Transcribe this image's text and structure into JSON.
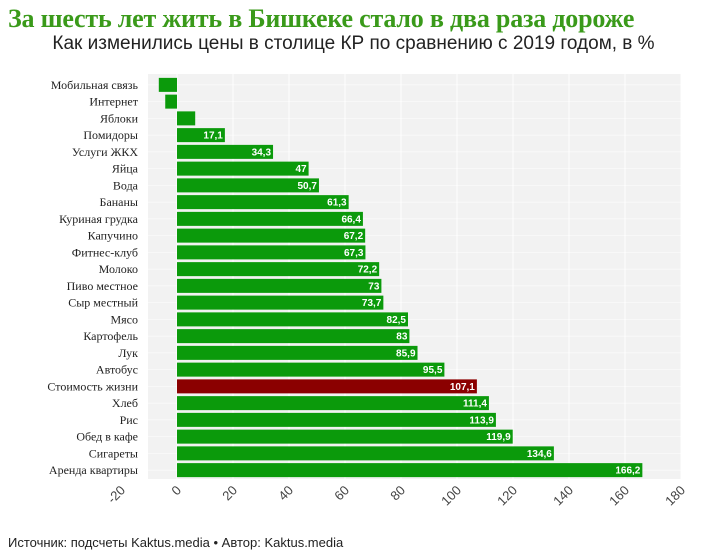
{
  "title": "За шесть лет жить в Бишкеке стало в два раза дороже",
  "subtitle": "Как изменились цены в столице КР по сравнению с 2019 годом, в %",
  "footer": "Источник: подсчеты Kaktus.media • Автор: Kaktus.media",
  "colors": {
    "bar": "#0b9a0b",
    "highlight": "#8b0000",
    "plot_bg": "#f2f2f2",
    "grid": "#ffffff",
    "title": "#3a9a1a"
  },
  "chart_data": {
    "type": "bar",
    "orientation": "horizontal",
    "title": "За шесть лет жить в Бишкеке стало в два раза дороже",
    "subtitle": "Как изменились цены в столице КР по сравнению с 2019 годом, в %",
    "xlabel": "",
    "ylabel": "",
    "xlim": [
      -20,
      180
    ],
    "xticks": [
      -20,
      0,
      20,
      40,
      60,
      80,
      100,
      120,
      140,
      160,
      180
    ],
    "highlight": "Стоимость жизни",
    "categories": [
      "Мобильная связь",
      "Интернет",
      "Яблоки",
      "Помидоры",
      "Услуги ЖКХ",
      "Яйца",
      "Вода",
      "Бананы",
      "Куриная грудка",
      "Капучино",
      "Фитнес-клуб",
      "Молоко",
      "Пиво местное",
      "Сыр местный",
      "Мясо",
      "Картофель",
      "Лук",
      "Автобус",
      "Стоимость жизни",
      "Хлеб",
      "Рис",
      "Обед в кафе",
      "Сигареты",
      "Аренда квартиры"
    ],
    "values": [
      -6.5,
      -4.2,
      6.5,
      17.1,
      34.3,
      47,
      50.7,
      61.3,
      66.4,
      67.2,
      67.3,
      72.2,
      73,
      73.7,
      82.5,
      83,
      85.9,
      95.5,
      107.1,
      111.4,
      113.9,
      119.9,
      134.6,
      166.2
    ],
    "labels": [
      "",
      "",
      "",
      "17,1",
      "34,3",
      "47",
      "50,7",
      "61,3",
      "66,4",
      "67,2",
      "67,3",
      "72,2",
      "73",
      "73,7",
      "82,5",
      "83",
      "85,9",
      "95,5",
      "107,1",
      "111,4",
      "113,9",
      "119,9",
      "134,6",
      "166,2"
    ]
  }
}
